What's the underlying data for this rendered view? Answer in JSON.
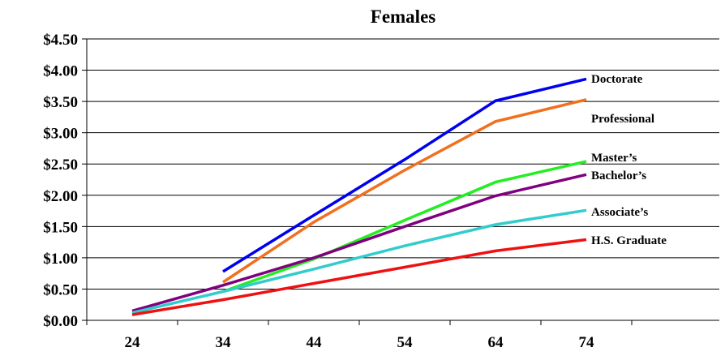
{
  "chart_data": {
    "type": "line",
    "title": "Females",
    "xlabel": "",
    "ylabel": "",
    "x": [
      24,
      34,
      44,
      54,
      64,
      74
    ],
    "ylim": [
      0,
      4.5
    ],
    "yticks": [
      "$0.00",
      "$0.50",
      "$1.00",
      "$1.50",
      "$2.00",
      "$2.50",
      "$3.00",
      "$3.50",
      "$4.00",
      "$4.50"
    ],
    "xticks": [
      "24",
      "34",
      "44",
      "54",
      "64",
      "74"
    ],
    "grid": true,
    "series": [
      {
        "name": "Doctorate",
        "color": "#0000ee",
        "values": [
          null,
          0.78,
          1.68,
          2.57,
          3.51,
          3.86
        ]
      },
      {
        "name": "Professional",
        "color": "#f07020",
        "values": [
          null,
          0.61,
          1.57,
          2.4,
          3.18,
          3.53
        ]
      },
      {
        "name": "Master’s",
        "color": "#22ee22",
        "values": [
          null,
          0.46,
          0.98,
          1.6,
          2.21,
          2.54
        ]
      },
      {
        "name": "Bachelor’s",
        "color": "#800080",
        "values": [
          0.15,
          0.56,
          1.0,
          1.5,
          1.99,
          2.33
        ]
      },
      {
        "name": "Associate’s",
        "color": "#33cccc",
        "values": [
          0.12,
          0.46,
          0.82,
          1.19,
          1.53,
          1.76
        ]
      },
      {
        "name": "H.S. Graduate",
        "color": "#ee1111",
        "values": [
          0.09,
          0.33,
          0.59,
          0.85,
          1.11,
          1.29
        ]
      }
    ]
  }
}
